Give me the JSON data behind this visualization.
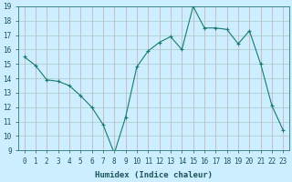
{
  "x": [
    0,
    1,
    2,
    3,
    4,
    5,
    6,
    7,
    8,
    9,
    10,
    11,
    12,
    13,
    14,
    15,
    16,
    17,
    18,
    19,
    20,
    21,
    22,
    23
  ],
  "y": [
    15.5,
    14.9,
    13.9,
    13.8,
    13.5,
    12.8,
    12.0,
    10.8,
    8.8,
    11.3,
    14.8,
    15.9,
    16.5,
    16.9,
    16.0,
    19.0,
    17.5,
    17.5,
    17.4,
    16.4,
    17.3,
    15.0,
    12.1,
    10.4
  ],
  "line_color": "#1a7a6e",
  "marker": "+",
  "marker_size": 3,
  "bg_color": "#cceeff",
  "grid_major_color": "#b0c8c8",
  "grid_minor_color": "#c8b0b0",
  "xlabel": "Humidex (Indice chaleur)",
  "ylim": [
    9,
    19
  ],
  "xlim_min": -0.5,
  "xlim_max": 23.5,
  "yticks": [
    9,
    10,
    11,
    12,
    13,
    14,
    15,
    16,
    17,
    18,
    19
  ],
  "xticks": [
    0,
    1,
    2,
    3,
    4,
    5,
    6,
    7,
    8,
    9,
    10,
    11,
    12,
    13,
    14,
    15,
    16,
    17,
    18,
    19,
    20,
    21,
    22,
    23
  ],
  "xtick_labels": [
    "0",
    "1",
    "2",
    "3",
    "4",
    "5",
    "6",
    "7",
    "8",
    "9",
    "10",
    "11",
    "12",
    "13",
    "14",
    "15",
    "16",
    "17",
    "18",
    "19",
    "20",
    "21",
    "22",
    "23"
  ],
  "label_fontsize": 6.5,
  "tick_fontsize": 5.5,
  "tick_color": "#1a5555",
  "label_color": "#1a5555"
}
